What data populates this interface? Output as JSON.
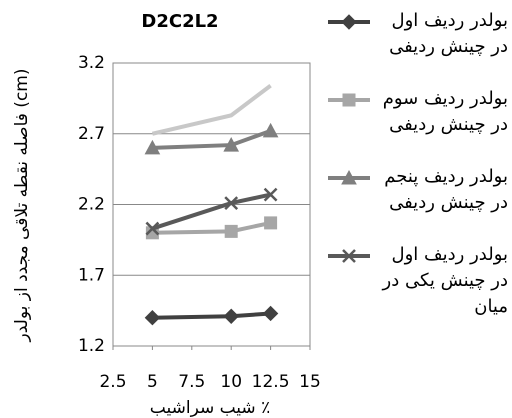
{
  "chart_data": {
    "type": "line",
    "title": "D2C2L2",
    "x_label": "شیب سراشیب ٪",
    "y_label": "فاصله نقطه تلاقی مجدد از بولدر (cm)",
    "x": [
      5,
      10,
      12.5
    ],
    "xlim": [
      2.5,
      15
    ],
    "xticks": [
      2.5,
      5,
      7.5,
      10,
      12.5,
      15
    ],
    "ylim": [
      1.2,
      3.2
    ],
    "yticks": [
      1.2,
      1.7,
      2.2,
      2.7,
      3.2
    ],
    "grid": true,
    "legend": "right",
    "series": [
      {
        "name": "بولدر ردیف اول در چینش ردیفی",
        "color": "#404040",
        "marker": "diamond",
        "values": [
          1.4,
          1.41,
          1.43
        ]
      },
      {
        "name": "بولدر ردیف سوم در چینش ردیفی",
        "color": "#a6a6a6",
        "marker": "square",
        "values": [
          2.0,
          2.01,
          2.07
        ]
      },
      {
        "name": "بولدر ردیف پنجم در چینش ردیفی",
        "color": "#7f7f7f",
        "marker": "triangle",
        "values": [
          2.6,
          2.62,
          2.72
        ]
      },
      {
        "name": "بولدر ردیف اول در چینش یکی در میان",
        "color": "#595959",
        "marker": "x",
        "values": [
          2.03,
          2.21,
          2.27
        ]
      },
      {
        "color": "#c8c8c8",
        "marker": "none",
        "values": [
          2.7,
          2.83,
          3.04
        ]
      }
    ]
  }
}
